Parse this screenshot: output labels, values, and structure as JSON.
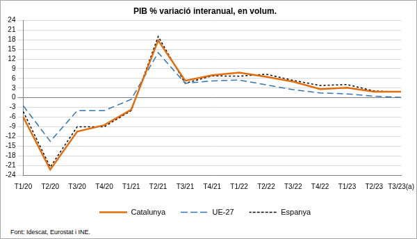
{
  "chart_data": {
    "type": "line",
    "title": "PIB % variació interanual, en volum.",
    "source": "Font: Idescat, Eurostat i INE.",
    "categories": [
      "T1/20",
      "T2/20",
      "T3/20",
      "T4/20",
      "T1/21",
      "T2/21",
      "T3/21",
      "T4/21",
      "T1/22",
      "T2/22",
      "T3/22",
      "T4/22",
      "T1/23",
      "T2/23",
      "T3/23(a)"
    ],
    "series": [
      {
        "name": "Catalunya",
        "color": "#e46c0a",
        "line_style": "solid",
        "marker": "none",
        "values": [
          -6,
          -22.3,
          -10.5,
          -8.5,
          -3.7,
          17.8,
          5.3,
          7,
          7.8,
          6.5,
          5,
          2.7,
          3.1,
          1.9,
          1.9
        ]
      },
      {
        "name": "UE-27",
        "color": "#2e75b6",
        "line_style": "dashed",
        "marker": "none",
        "values": [
          -2.5,
          -13.5,
          -4,
          -4,
          -0.5,
          14,
          4.5,
          5.2,
          5.5,
          4,
          2.5,
          1.5,
          1.2,
          0.5,
          0.1
        ]
      },
      {
        "name": "Espanya",
        "color": "#000000",
        "line_style": "dotted",
        "marker": "none",
        "values": [
          -4.3,
          -21.5,
          -9,
          -9,
          -4,
          19,
          4.5,
          6.8,
          6.7,
          7.3,
          5.4,
          3.8,
          4.1,
          2.1,
          1.8
        ]
      }
    ],
    "ylim": [
      -24,
      24
    ],
    "yticks": [
      -24,
      -21,
      -18,
      -15,
      -12,
      -9,
      -6,
      -3,
      0,
      3,
      6,
      9,
      12,
      15,
      18,
      21,
      24
    ],
    "grid": true,
    "legend": "bottom"
  }
}
